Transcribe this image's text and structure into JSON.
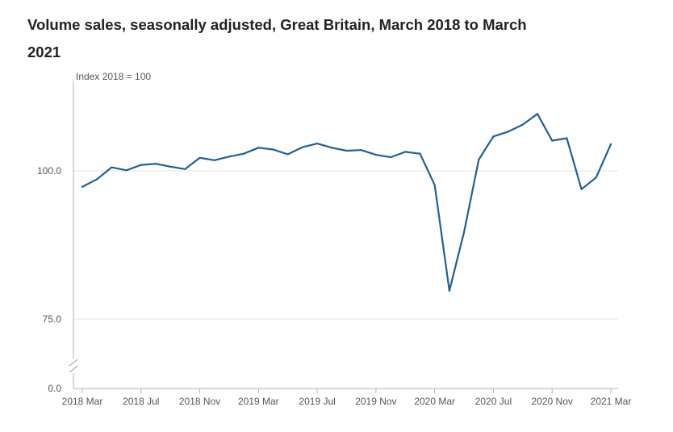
{
  "chart_data": {
    "type": "line",
    "title": "Volume sales, seasonally adjusted, Great Britain, March 2018 to March 2021",
    "ylabel": "Index 2018 = 100",
    "xlabel": "",
    "y_axis_break": true,
    "yticks": [
      {
        "value": 0,
        "label": "0.0"
      },
      {
        "value": 75,
        "label": "75.0"
      },
      {
        "value": 100,
        "label": "100.0"
      }
    ],
    "x_tick_labels": [
      "2018 Mar",
      "2018 Jul",
      "2018 Nov",
      "2019 Mar",
      "2019 Jul",
      "2019 Nov",
      "2020 Mar",
      "2020 Jul",
      "2020 Nov",
      "2021 Mar"
    ],
    "x": [
      "2018 Mar",
      "2018 Apr",
      "2018 May",
      "2018 Jun",
      "2018 Jul",
      "2018 Aug",
      "2018 Sep",
      "2018 Oct",
      "2018 Nov",
      "2018 Dec",
      "2019 Jan",
      "2019 Feb",
      "2019 Mar",
      "2019 Apr",
      "2019 May",
      "2019 Jun",
      "2019 Jul",
      "2019 Aug",
      "2019 Sep",
      "2019 Oct",
      "2019 Nov",
      "2019 Dec",
      "2020 Jan",
      "2020 Feb",
      "2020 Mar",
      "2020 Apr",
      "2020 May",
      "2020 Jun",
      "2020 Jul",
      "2020 Aug",
      "2020 Sep",
      "2020 Oct",
      "2020 Nov",
      "2020 Dec",
      "2021 Jan",
      "2021 Feb",
      "2021 Mar"
    ],
    "series": [
      {
        "values": [
          97.3,
          98.6,
          100.6,
          100.1,
          101.0,
          101.2,
          100.7,
          100.3,
          102.2,
          101.8,
          102.4,
          102.9,
          103.9,
          103.6,
          102.8,
          104.0,
          104.6,
          103.9,
          103.4,
          103.5,
          102.7,
          102.3,
          103.2,
          102.9,
          97.6,
          79.8,
          89.7,
          101.9,
          105.8,
          106.6,
          107.8,
          109.6,
          105.1,
          105.5,
          96.9,
          98.9,
          104.5
        ],
        "color": "#206095"
      }
    ],
    "colors": {
      "line": "#206095",
      "grid": "#e6e6e6",
      "axis": "#b0b0b0",
      "text": "#555555"
    },
    "grid": true
  }
}
